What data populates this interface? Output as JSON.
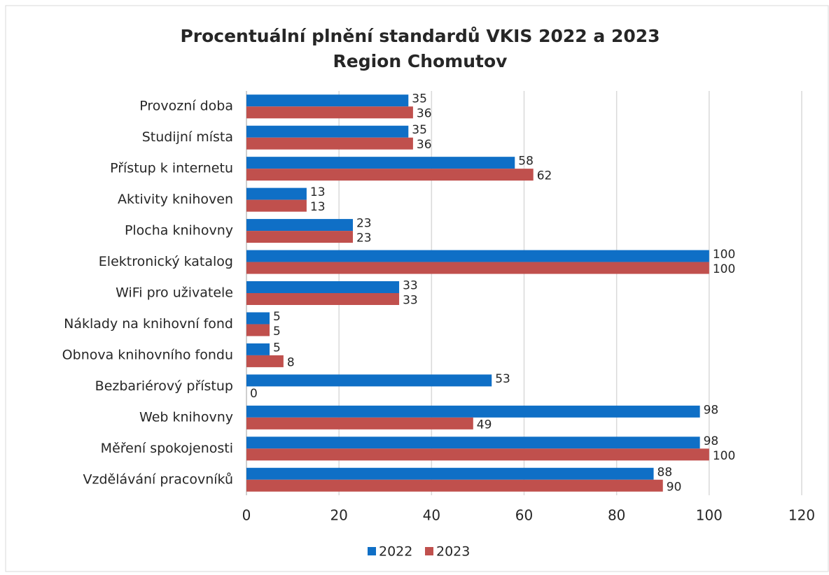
{
  "chart_data": {
    "type": "hbar",
    "title": "Procentuální plnění standardů VKIS 2022 a 2023",
    "subtitle": "Region Chomutov",
    "categories": [
      "Provozní doba",
      "Studijní místa",
      "Přístup k internetu",
      "Aktivity knihoven",
      "Plocha knihovny",
      "Elektronický katalog",
      "WiFi pro uživatele",
      "Náklady na knihovní fond",
      "Obnova knihovního fondu",
      "Bezbariérový přístup",
      "Web knihovny",
      "Měření spokojenosti",
      "Vzdělávání pracovníků"
    ],
    "series": [
      {
        "name": "2022",
        "color": "#0f6fc6",
        "values": [
          35,
          35,
          58,
          13,
          23,
          100,
          33,
          5,
          5,
          53,
          98,
          98,
          88
        ]
      },
      {
        "name": "2023",
        "color": "#c0504d",
        "values": [
          36,
          36,
          62,
          13,
          23,
          100,
          33,
          5,
          8,
          0,
          49,
          100,
          90
        ]
      }
    ],
    "xlim": [
      0,
      120
    ],
    "xticks": [
      0,
      20,
      40,
      60,
      80,
      100,
      120
    ],
    "grid": true,
    "legend": "bottom"
  }
}
